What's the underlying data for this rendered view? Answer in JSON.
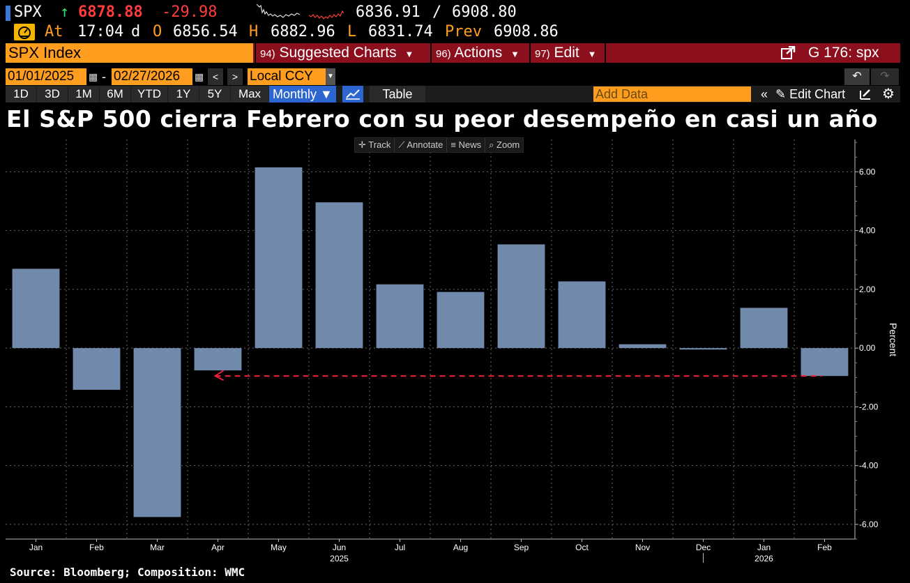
{
  "quote": {
    "ticker": "SPX",
    "last_price": "6878.88",
    "net_change": "-29.98",
    "range_low": "6836.91",
    "range_sep": "/",
    "range_high": "6908.80"
  },
  "stats": {
    "at_label": "At",
    "time": "17:04",
    "d_label": "d",
    "open_label": "O",
    "open": "6856.54",
    "high_label": "H",
    "high": "6882.96",
    "low_label": "L",
    "low": "6831.74",
    "prev_label": "Prev",
    "prev": "6908.86"
  },
  "menu": {
    "security": "SPX Index",
    "suggested_num": "94)",
    "suggested_label": "Suggested Charts",
    "actions_num": "96)",
    "actions_label": "Actions",
    "edit_num": "97)",
    "edit_label": "Edit",
    "page_code": "G 176: spx"
  },
  "dates": {
    "start": "01/01/2025",
    "dash": "-",
    "end": "02/27/2026",
    "currency": "Local CCY"
  },
  "periods": [
    "1D",
    "3D",
    "1M",
    "6M",
    "YTD",
    "1Y",
    "5Y",
    "Max"
  ],
  "toolbar": {
    "frequency": "Monthly ▼",
    "table_label": "Table",
    "add_data_placeholder": "Add Data",
    "edit_chart_label": "Edit Chart"
  },
  "headline": "El S&P 500 cierra Febrero con su peor desempeño en casi un año",
  "chart_tools": [
    "Track",
    "Annotate",
    "News",
    "Zoom"
  ],
  "colors": {
    "bar": "#7189ab",
    "orange": "#ff9d1f",
    "menu_red": "#8b0f1c",
    "down_red": "#ff3b3b",
    "up_green": "#2ee06b",
    "reference_line": "#e8203a"
  },
  "chart_data": {
    "type": "bar",
    "categories": [
      "Jan",
      "Feb",
      "Mar",
      "Apr",
      "May",
      "Jun",
      "Jul",
      "Aug",
      "Sep",
      "Oct",
      "Nov",
      "Dec",
      "Jan",
      "Feb"
    ],
    "values": [
      2.7,
      -1.42,
      -5.75,
      -0.76,
      6.15,
      4.96,
      2.17,
      1.91,
      3.53,
      2.27,
      0.13,
      -0.05,
      1.37,
      -0.95
    ],
    "year_labels": [
      {
        "label": "2025",
        "after_index": 5
      },
      {
        "label": "2026",
        "after_index": 12
      }
    ],
    "ylabel": "Percent",
    "y_ticks": [
      "6.00",
      "4.00",
      "2.00",
      "0.00",
      "-2.00",
      "-4.00",
      "-6.00"
    ],
    "ylim": [
      -6.5,
      7.1
    ],
    "reference_line": {
      "value": -0.95,
      "from_index": 3,
      "to_index": 13,
      "style": "dashed"
    },
    "grid": true,
    "y_axis_side": "right"
  },
  "source": "Source: Bloomberg; Composition: WMC"
}
